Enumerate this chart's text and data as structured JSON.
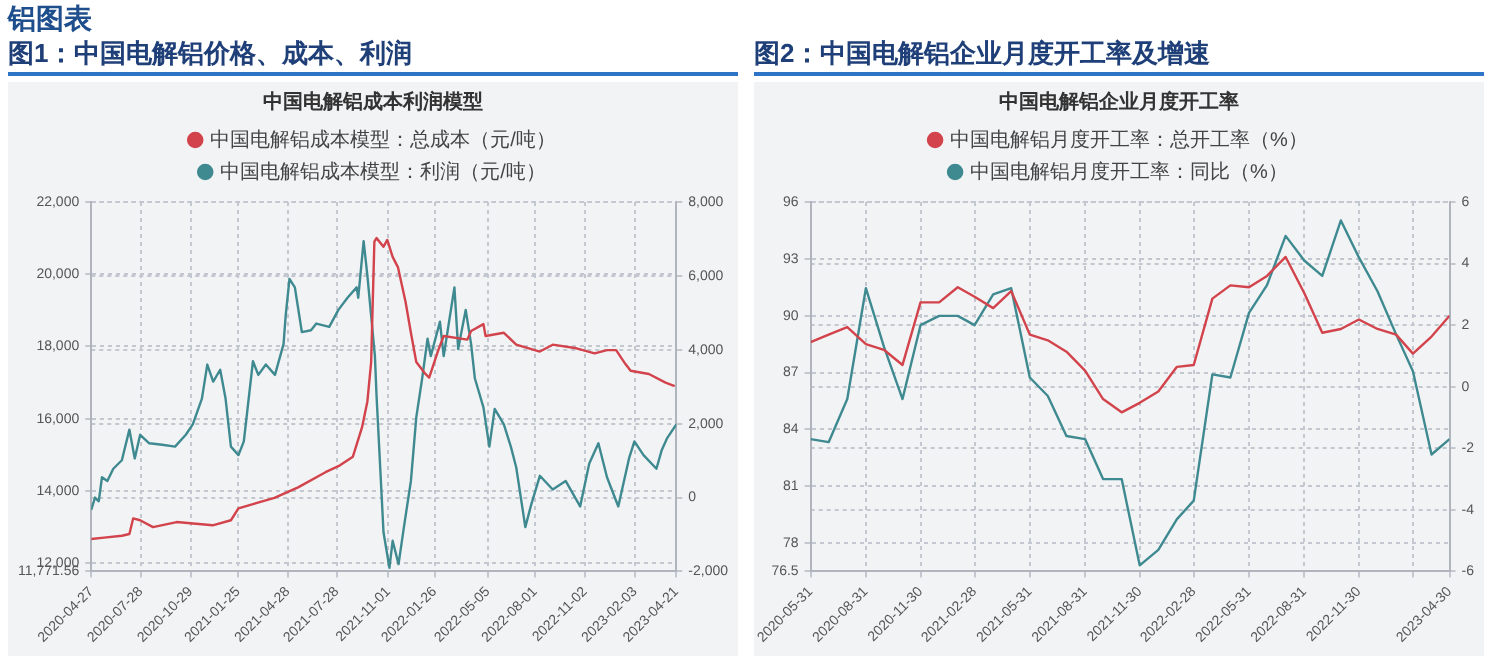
{
  "chart_data": [
    {
      "type": "line",
      "title": "图1：中国电解铝价格、成本、利润",
      "subtitle": "中国电解铝成本利润模型",
      "annotations": [
        "铝图表"
      ],
      "series": [
        {
          "name": "中国电解铝成本模型：总成本（元/吨）",
          "color": "#d2434c",
          "axis": "y",
          "x": [
            "2020-04-27",
            "2020-05-21",
            "2020-06-23",
            "2020-07-07",
            "2020-07-14",
            "2020-07-27",
            "2020-08-20",
            "2020-10-03",
            "2020-12-09",
            "2021-01-12",
            "2021-01-26",
            "2021-04-03",
            "2021-05-17",
            "2021-07-07",
            "2021-08-03",
            "2021-08-27",
            "2021-09-13",
            "2021-09-23",
            "2021-09-30",
            "2021-10-06",
            "2021-10-10",
            "2021-10-23",
            "2021-10-30",
            "2021-11-09",
            "2021-11-19",
            "2021-12-03",
            "2021-12-13",
            "2021-12-23",
            "2022-01-09",
            "2022-01-16",
            "2022-02-02",
            "2022-02-12",
            "2022-03-28",
            "2022-04-04",
            "2022-04-27",
            "2022-05-01",
            "2022-06-04",
            "2022-06-27",
            "2022-08-10",
            "2022-09-03",
            "2022-10-17",
            "2022-11-20",
            "2022-12-13",
            "2022-12-30",
            "2023-01-16",
            "2023-01-26",
            "2023-03-01",
            "2023-04-01",
            "2023-04-18"
          ],
          "values": [
            12670,
            12710,
            12760,
            12810,
            13240,
            13190,
            13000,
            13140,
            13050,
            13190,
            13520,
            13810,
            14100,
            14520,
            14710,
            14950,
            15760,
            16480,
            17570,
            20900,
            21000,
            20760,
            20950,
            20480,
            20190,
            19240,
            18380,
            17570,
            17240,
            17140,
            17900,
            18290,
            18190,
            18430,
            18620,
            18290,
            18380,
            18050,
            17860,
            18050,
            17950,
            17810,
            17900,
            17900,
            17520,
            17330,
            17240,
            17000,
            16900
          ]
        },
        {
          "name": "中国电解铝成本模型：利润（元/吨）",
          "color": "#3f8a90",
          "axis": "y2",
          "x": [
            "2020-04-27",
            "2020-05-04",
            "2020-05-11",
            "2020-05-17",
            "2020-05-27",
            "2020-06-07",
            "2020-06-23",
            "2020-07-07",
            "2020-07-17",
            "2020-07-27",
            "2020-08-13",
            "2020-09-06",
            "2020-09-30",
            "2020-10-20",
            "2020-11-02",
            "2020-11-19",
            "2020-11-29",
            "2020-12-10",
            "2020-12-23",
            "2021-01-02",
            "2021-01-12",
            "2021-01-26",
            "2021-02-05",
            "2021-02-22",
            "2021-03-04",
            "2021-03-18",
            "2021-04-04",
            "2021-04-20",
            "2021-04-24",
            "2021-05-01",
            "2021-05-11",
            "2021-05-24",
            "2021-06-10",
            "2021-06-20",
            "2021-07-14",
            "2021-07-31",
            "2021-08-17",
            "2021-09-03",
            "2021-09-06",
            "2021-09-16",
            "2021-09-23",
            "2021-10-07",
            "2021-10-10",
            "2021-10-23",
            "2021-11-03",
            "2021-11-09",
            "2021-11-20",
            "2021-11-30",
            "2021-12-13",
            "2021-12-23",
            "2022-01-03",
            "2022-01-13",
            "2022-01-19",
            "2022-02-05",
            "2022-02-12",
            "2022-02-22",
            "2022-03-04",
            "2022-03-11",
            "2022-03-25",
            "2022-04-04",
            "2022-04-11",
            "2022-04-27",
            "2022-05-08",
            "2022-05-18",
            "2022-06-04",
            "2022-06-17",
            "2022-06-27",
            "2022-07-14",
            "2022-07-24",
            "2022-08-10",
            "2022-09-03",
            "2022-09-27",
            "2022-10-24",
            "2022-11-10",
            "2022-11-27",
            "2022-12-13",
            "2023-01-03",
            "2023-01-23",
            "2023-02-02",
            "2023-02-19",
            "2023-03-15",
            "2023-03-25",
            "2023-04-04",
            "2023-04-21"
          ],
          "values": [
            -330,
            0,
            -100,
            550,
            450,
            780,
            1010,
            1840,
            1060,
            1700,
            1470,
            1430,
            1380,
            1700,
            1980,
            2680,
            3600,
            3140,
            3460,
            2680,
            1380,
            1150,
            1520,
            3690,
            3320,
            3600,
            3320,
            4160,
            4940,
            5920,
            5690,
            4480,
            4530,
            4710,
            4620,
            5080,
            5410,
            5690,
            5410,
            6940,
            6010,
            3830,
            2770,
            -940,
            -1900,
            -1170,
            -1800,
            -800,
            450,
            2170,
            3230,
            4300,
            3830,
            4760,
            3830,
            4760,
            5690,
            4020,
            5080,
            4160,
            3230,
            2440,
            1380,
            2400,
            1980,
            1380,
            820,
            -800,
            -240,
            590,
            220,
            450,
            -240,
            920,
            1470,
            550,
            -240,
            1060,
            1520,
            1150,
            780,
            1290,
            1610,
            1980
          ]
        }
      ],
      "xlim": [
        "2020-04-27",
        "2023-04-21"
      ],
      "xticks": [
        "2020-04-27",
        "2020-07-28",
        "2020-10-29",
        "2021-01-25",
        "2021-04-28",
        "2021-07-28",
        "2021-11-01",
        "2022-01-26",
        "2022-05-05",
        "2022-08-01",
        "2022-11-02",
        "2023-02-03",
        "2023-04-21"
      ],
      "ylim": [
        11771.56,
        22000
      ],
      "yticks": [
        {
          "value": 11771.56,
          "label": "11,771.56"
        },
        {
          "value": 12000,
          "label": "12,000"
        },
        {
          "value": 14000,
          "label": "14,000"
        },
        {
          "value": 16000,
          "label": "16,000"
        },
        {
          "value": 18000,
          "label": "18,000"
        },
        {
          "value": 20000,
          "label": "20,000"
        },
        {
          "value": 22000,
          "label": "22,000"
        }
      ],
      "y2lim": [
        -2000,
        8000
      ],
      "y2ticks": [
        {
          "value": -2000,
          "label": "-2,000"
        },
        0,
        {
          "value": 2000,
          "label": "2,000"
        },
        {
          "value": 4000,
          "label": "4,000"
        },
        {
          "value": 6000,
          "label": "6,000"
        },
        {
          "value": 8000,
          "label": "8,000"
        }
      ],
      "grid": true,
      "legend": "top"
    },
    {
      "type": "line",
      "title": "图2：中国电解铝企业月度开工率及增速",
      "subtitle": "中国电解铝企业月度开工率",
      "x": [
        "2020-05-31",
        "2020-06-30",
        "2020-07-31",
        "2020-08-31",
        "2020-09-30",
        "2020-10-31",
        "2020-11-30",
        "2020-12-31",
        "2021-01-31",
        "2021-02-28",
        "2021-03-31",
        "2021-04-30",
        "2021-05-31",
        "2021-06-30",
        "2021-07-31",
        "2021-08-31",
        "2021-09-30",
        "2021-10-31",
        "2021-11-30",
        "2021-12-31",
        "2022-01-31",
        "2022-02-28",
        "2022-03-31",
        "2022-04-30",
        "2022-05-31",
        "2022-06-30",
        "2022-07-31",
        "2022-08-31",
        "2022-09-30",
        "2022-10-31",
        "2022-11-30",
        "2022-12-31",
        "2023-01-31",
        "2023-02-28",
        "2023-03-31",
        "2023-04-30"
      ],
      "series": [
        {
          "name": "中国电解铝月度开工率：总开工率（%）",
          "color": "#d2434c",
          "axis": "y",
          "values": [
            88.6,
            89.0,
            89.4,
            88.5,
            88.2,
            87.4,
            90.7,
            90.7,
            91.5,
            91.0,
            90.4,
            91.3,
            89.0,
            88.7,
            88.1,
            87.1,
            85.6,
            84.9,
            85.4,
            86.0,
            87.3,
            87.4,
            90.9,
            91.6,
            91.5,
            92.1,
            93.1,
            91.2,
            89.1,
            89.3,
            89.8,
            89.3,
            89.0,
            88.0,
            88.9,
            90.0
          ]
        },
        {
          "name": "中国电解铝月度开工率：同比（%）",
          "color": "#3f8a90",
          "axis": "y2",
          "values": [
            -1.7,
            -1.8,
            -0.4,
            3.2,
            1.3,
            -0.4,
            2.0,
            2.3,
            2.3,
            2.0,
            3.0,
            3.2,
            0.3,
            -0.3,
            -1.6,
            -1.7,
            -3.0,
            -3.0,
            -5.8,
            -5.3,
            -4.3,
            -3.7,
            0.4,
            0.3,
            2.4,
            3.3,
            4.9,
            4.1,
            3.6,
            5.4,
            4.2,
            3.1,
            1.7,
            0.5,
            -2.2,
            -1.7
          ]
        }
      ],
      "xlim": [
        "2020-05-31",
        "2023-04-30"
      ],
      "xticks": [
        "2020-05-31",
        "2020-08-31",
        "2020-11-30",
        "2021-02-28",
        "2021-05-31",
        "2021-08-31",
        "2021-11-30",
        "2022-02-28",
        "2022-05-31",
        "2022-08-31",
        "2022-11-30",
        {
          "value": "2023-02-28",
          "label": null
        },
        "2023-04-30"
      ],
      "ylim": [
        76.5,
        96
      ],
      "yticks": [
        76.5,
        78,
        81,
        84,
        87,
        90,
        93,
        96
      ],
      "y2lim": [
        -6,
        6
      ],
      "y2ticks": [
        -6,
        -4,
        -2,
        0,
        2,
        4,
        6
      ],
      "grid": true,
      "legend": "top"
    }
  ]
}
